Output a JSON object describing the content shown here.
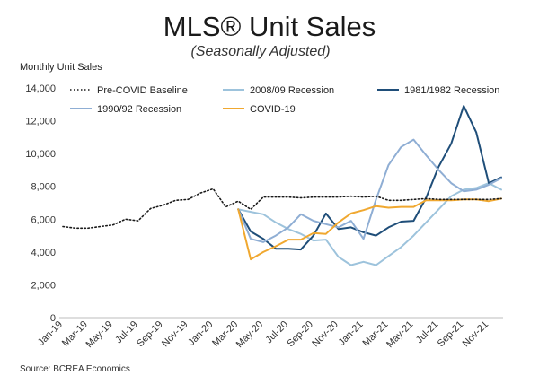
{
  "chart_data": {
    "type": "line",
    "title": "MLS® Unit Sales",
    "subtitle": "(Seasonally Adjusted)",
    "ylabel": "Monthly Unit Sales",
    "xlabel": "",
    "source": "Source: BCREA Economics",
    "ylim": [
      0,
      14000
    ],
    "yticks": [
      0,
      2000,
      4000,
      6000,
      8000,
      10000,
      12000,
      14000
    ],
    "ytick_labels": [
      "0",
      "2,000",
      "4,000",
      "6,000",
      "8,000",
      "10,000",
      "12,000",
      "14,000"
    ],
    "grid": false,
    "legend_position": "top",
    "months": [
      "Jan-19",
      "Feb-19",
      "Mar-19",
      "Apr-19",
      "May-19",
      "Jun-19",
      "Jul-19",
      "Aug-19",
      "Sep-19",
      "Oct-19",
      "Nov-19",
      "Dec-19",
      "Jan-20",
      "Feb-20",
      "Mar-20",
      "Apr-20",
      "May-20",
      "Jun-20",
      "Jul-20",
      "Aug-20",
      "Sep-20",
      "Oct-20",
      "Nov-20",
      "Dec-20",
      "Jan-21",
      "Feb-21",
      "Mar-21",
      "Apr-21",
      "May-21",
      "Jun-21",
      "Jul-21",
      "Aug-21",
      "Sep-21",
      "Oct-21",
      "Nov-21",
      "Dec-21"
    ],
    "xtick_labels": [
      "Jan-19",
      "Mar-19",
      "May-19",
      "Jul-19",
      "Sep-19",
      "Nov-19",
      "Jan-20",
      "Mar-20",
      "May-20",
      "Jul-20",
      "Sep-20",
      "Nov-20",
      "Jan-21",
      "Mar-21",
      "May-21",
      "Jul-21",
      "Sep-21",
      "Nov-21"
    ],
    "series": [
      {
        "name": "Pre-COVID Baseline",
        "color": "#1a1a1a",
        "style": "dotted",
        "start_index": 0,
        "values": [
          5550,
          5450,
          5450,
          5550,
          5650,
          6000,
          5900,
          6650,
          6850,
          7150,
          7200,
          7600,
          7850,
          6750,
          7100,
          6600,
          7350,
          7350,
          7350,
          7300,
          7350,
          7350,
          7350,
          7400,
          7350,
          7400,
          7150,
          7150,
          7200,
          7250,
          7200,
          7200,
          7200,
          7200,
          7200,
          7250
        ]
      },
      {
        "name": "2008/09 Recession",
        "color": "#9dc3dc",
        "style": "solid",
        "start_index": 14,
        "values": [
          6600,
          6450,
          6300,
          5800,
          5400,
          5100,
          4700,
          4750,
          3700,
          3200,
          3400,
          3200,
          3750,
          4300,
          5000,
          5800,
          6600,
          7400,
          7800,
          7900,
          8200,
          7800
        ]
      },
      {
        "name": "1981/1982 Recession",
        "color": "#1f4e79",
        "style": "solid",
        "start_index": 14,
        "values": [
          6600,
          5250,
          4800,
          4200,
          4200,
          4150,
          5000,
          6350,
          5400,
          5500,
          5200,
          5000,
          5500,
          5850,
          5900,
          7300,
          9200,
          10600,
          12900,
          11300,
          8200,
          8550
        ]
      },
      {
        "name": "1990/92 Recession",
        "color": "#8faed4",
        "style": "solid",
        "start_index": 14,
        "values": [
          6600,
          4800,
          4600,
          5000,
          5500,
          6300,
          5900,
          5700,
          5500,
          5900,
          4800,
          7200,
          9300,
          10400,
          10850,
          9900,
          9000,
          8200,
          7700,
          7800,
          8100,
          8500
        ]
      },
      {
        "name": "COVID-19",
        "color": "#f0a830",
        "style": "solid",
        "start_index": 14,
        "values": [
          6600,
          3550,
          4000,
          4350,
          4750,
          4750,
          5150,
          5100,
          5800,
          6350,
          6550,
          6800,
          6700,
          6750,
          6750,
          7150,
          7150,
          7150,
          7200,
          7200,
          7100,
          7250
        ]
      }
    ]
  }
}
